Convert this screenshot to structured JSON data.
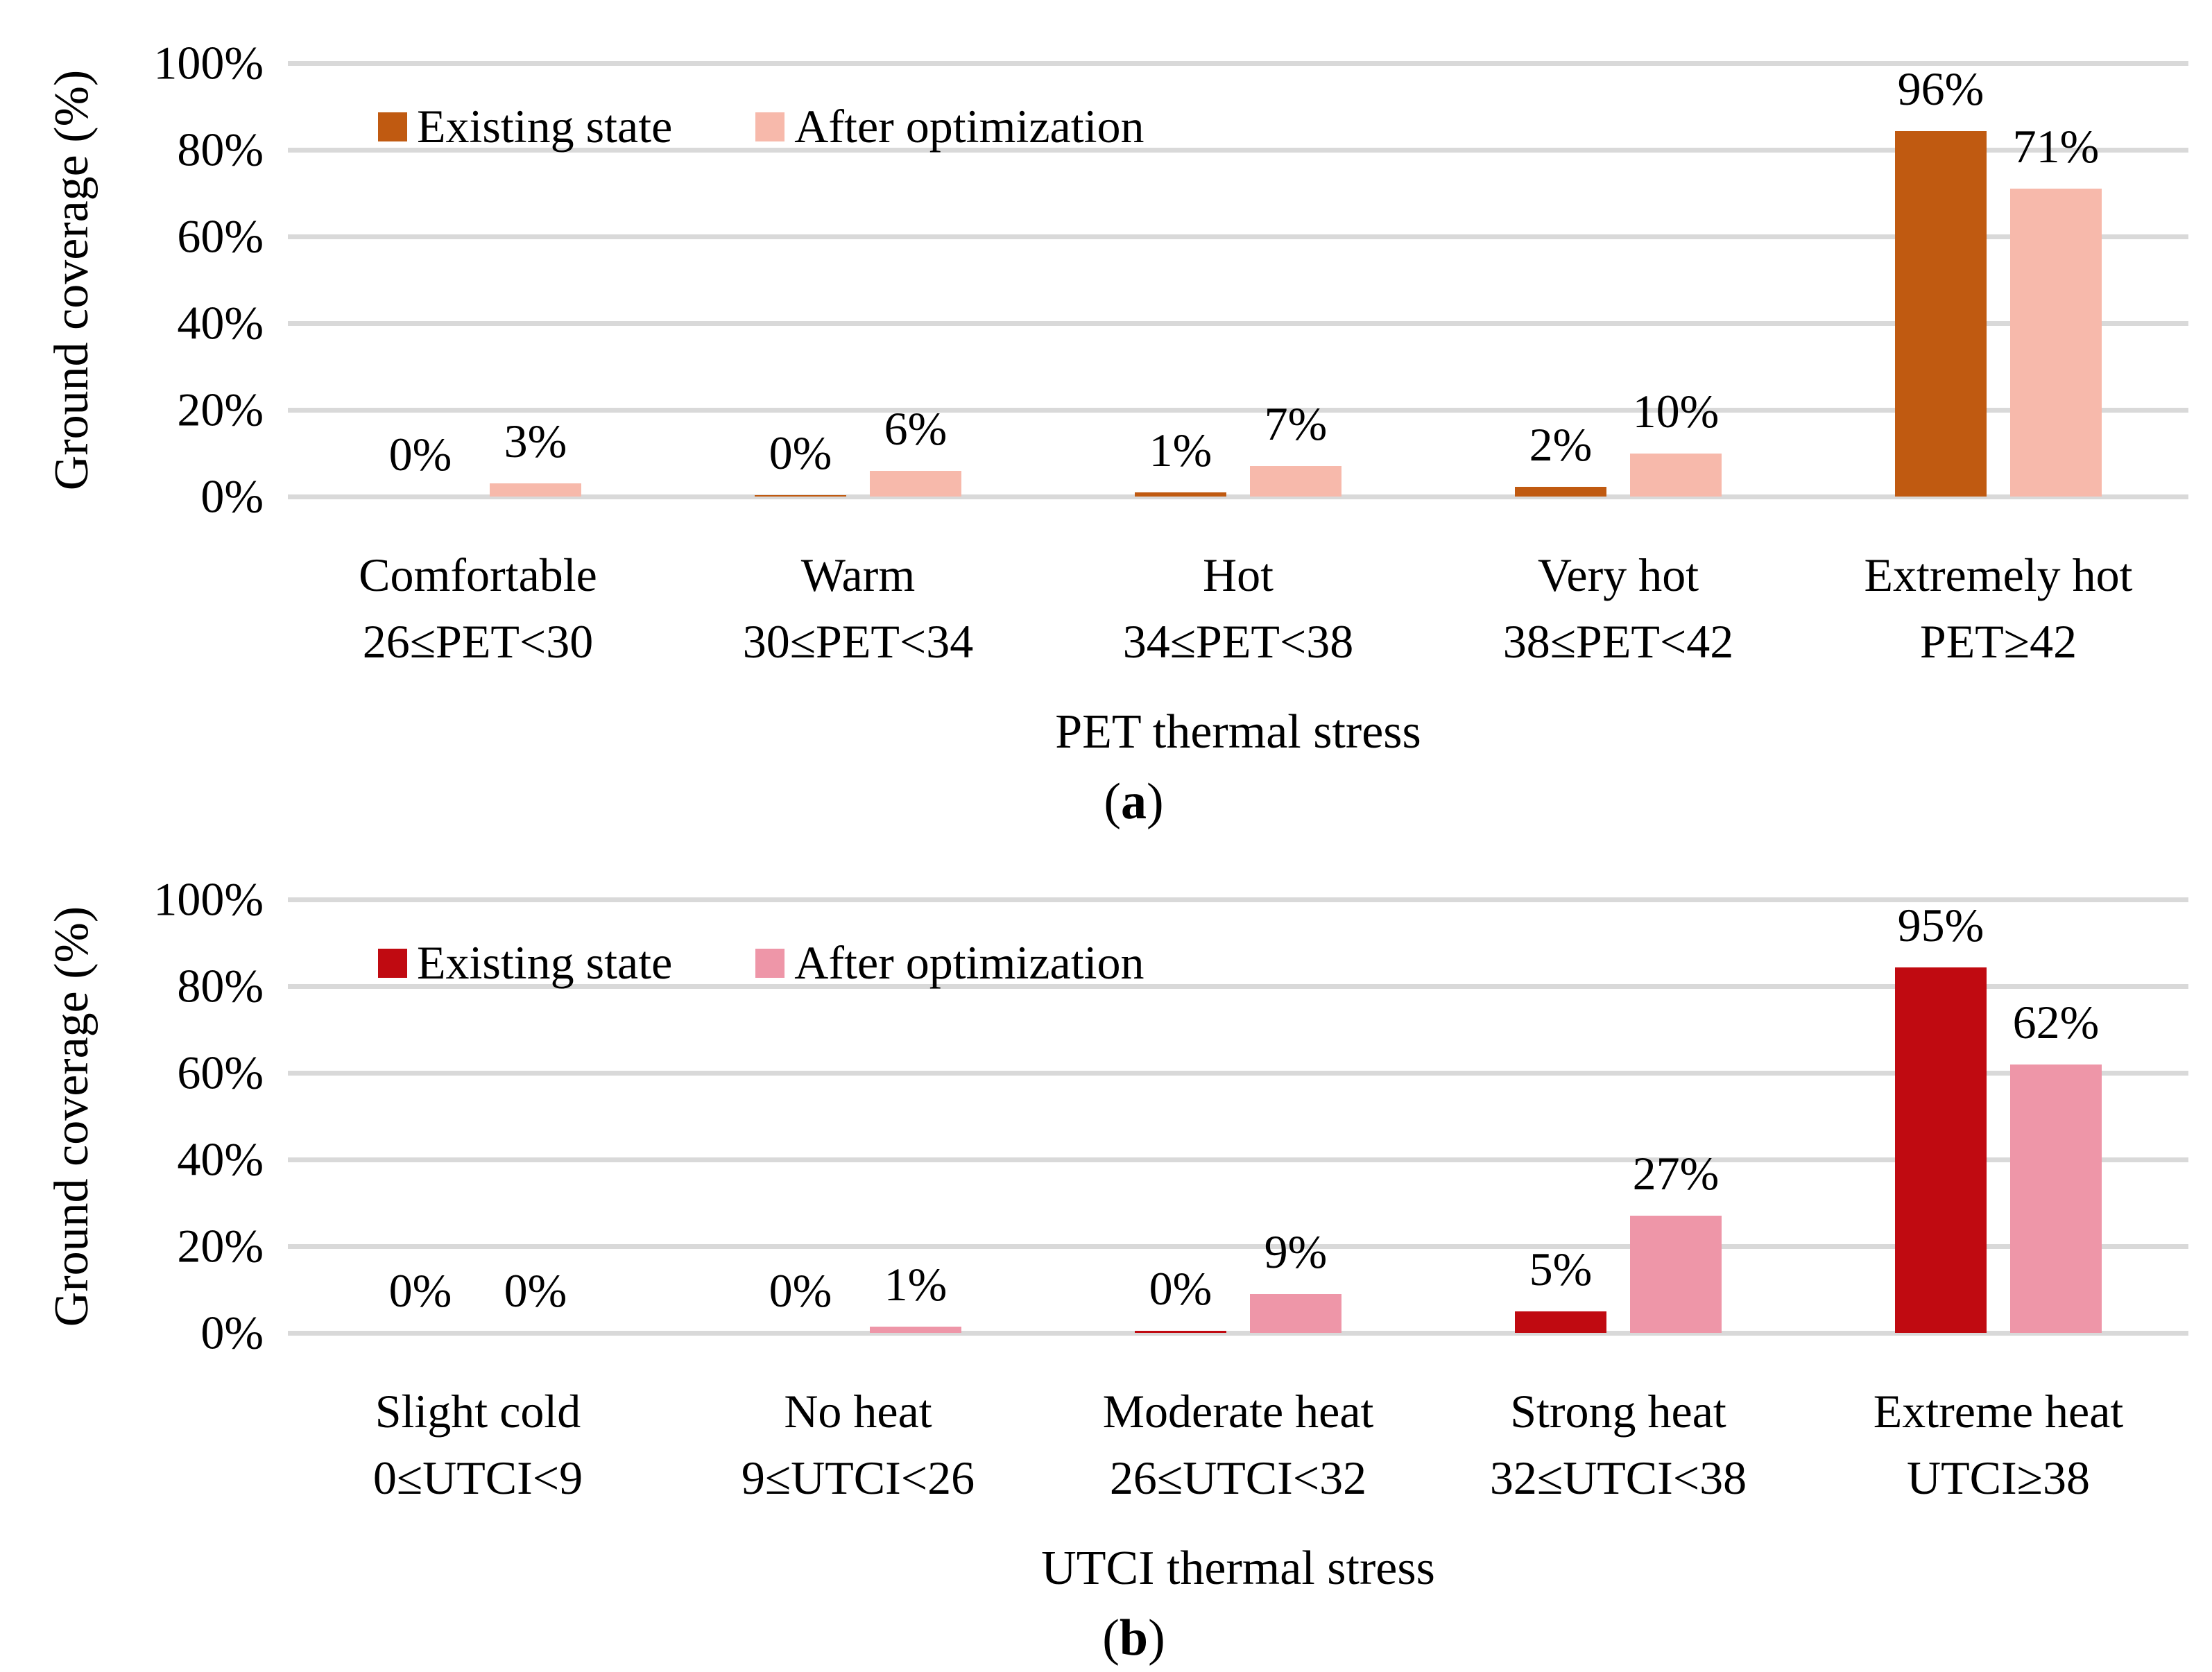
{
  "figure": {
    "background": "#FFFFFF",
    "gridline_color": "#D9D9D9"
  },
  "chart_data": [
    {
      "type": "bar",
      "panel": "a",
      "caption_letter": "a",
      "x_axis": {
        "title": "PET thermal stress"
      },
      "y_axis": {
        "title": "Ground coverage (%)",
        "ticks": [
          "100%",
          "80%",
          "60%",
          "40%",
          "20%",
          "0%"
        ],
        "tick_values": [
          100,
          80,
          60,
          40,
          20,
          0
        ],
        "range": [
          0,
          100
        ],
        "grid": true
      },
      "legend_position": "top-left-inside",
      "categories": [
        {
          "name": "Comfortable",
          "range": "26≤PET<30"
        },
        {
          "name": "Warm",
          "range": "30≤PET<34"
        },
        {
          "name": "Hot",
          "range": "34≤PET<38"
        },
        {
          "name": "Very hot",
          "range": "38≤PET<42"
        },
        {
          "name": "Extremely hot",
          "range": "PET≥42"
        }
      ],
      "series": [
        {
          "name": "Existing state",
          "color": "#C05A11",
          "values": [
            0,
            0,
            1,
            2,
            96
          ],
          "labels": [
            "0%",
            "0%",
            "1%",
            "2%",
            "96%"
          ],
          "render_heights": [
            0,
            0.4,
            1,
            2.2,
            96
          ]
        },
        {
          "name": "After optimization",
          "color": "#F7B9AB",
          "values": [
            3,
            6,
            7,
            10,
            71
          ],
          "labels": [
            "3%",
            "6%",
            "7%",
            "10%",
            "71%"
          ],
          "render_heights": [
            3,
            6,
            7,
            10,
            71
          ]
        }
      ]
    },
    {
      "type": "bar",
      "panel": "b",
      "caption_letter": "b",
      "x_axis": {
        "title": "UTCI thermal stress"
      },
      "y_axis": {
        "title": "Ground coverage (%)",
        "ticks": [
          "100%",
          "80%",
          "60%",
          "40%",
          "20%",
          "0%"
        ],
        "tick_values": [
          100,
          80,
          60,
          40,
          20,
          0
        ],
        "range": [
          0,
          100
        ],
        "grid": true
      },
      "legend_position": "top-left-inside",
      "categories": [
        {
          "name": "Slight cold",
          "range": "0≤UTCI<9"
        },
        {
          "name": "No heat",
          "range": "9≤UTCI<26"
        },
        {
          "name": "Moderate heat",
          "range": "26≤UTCI<32"
        },
        {
          "name": "Strong heat",
          "range": "32≤UTCI<38"
        },
        {
          "name": "Extreme heat",
          "range": "UTCI≥38"
        }
      ],
      "series": [
        {
          "name": "Existing state",
          "color": "#C00A11",
          "values": [
            0,
            0,
            0,
            5,
            95
          ],
          "labels": [
            "0%",
            "0%",
            "0%",
            "5%",
            "95%"
          ],
          "render_heights": [
            0,
            0,
            0.5,
            5,
            95
          ]
        },
        {
          "name": "After optimization",
          "color": "#EE96A8",
          "values": [
            0,
            1,
            9,
            27,
            62
          ],
          "labels": [
            "0%",
            "1%",
            "9%",
            "27%",
            "62%"
          ],
          "render_heights": [
            0,
            1.5,
            9,
            27,
            62
          ]
        }
      ]
    }
  ]
}
